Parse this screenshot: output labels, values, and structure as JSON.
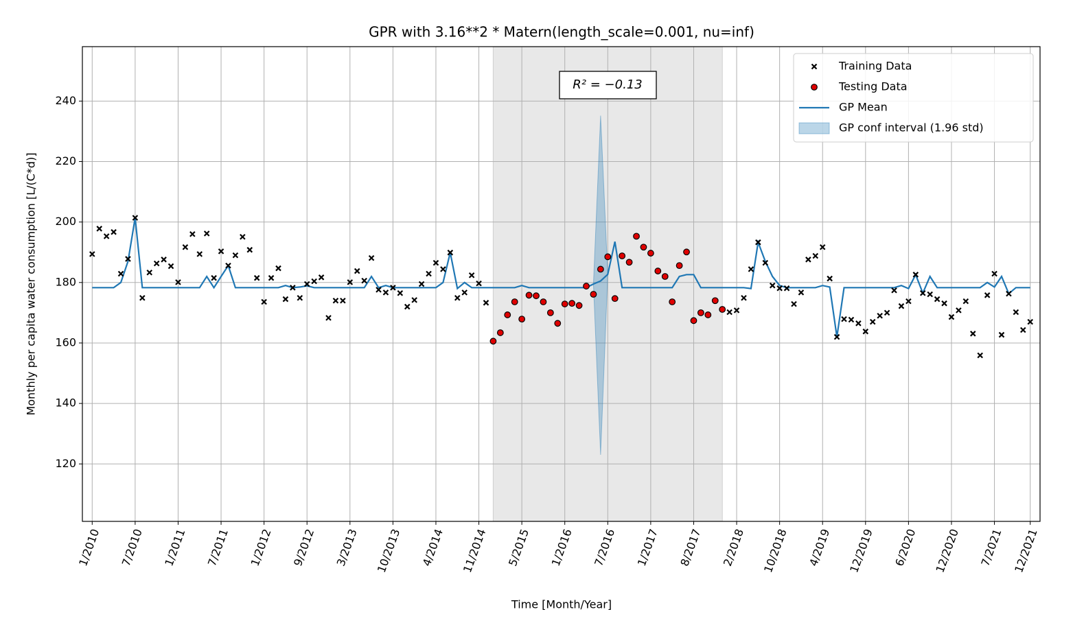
{
  "chart_data": {
    "type": "line",
    "title": "GPR with 3.16**2 * Matern(length_scale=0.001, nu=inf)",
    "xlabel": "Time [Month/Year]",
    "ylabel": "Monthly per capita water consumption [L/(C*d)]",
    "annotation": "R² = −0.13",
    "grid": true,
    "legend": "upper right",
    "ylim": [
      101,
      258
    ],
    "yticks": [
      120,
      140,
      160,
      180,
      200,
      220,
      240
    ],
    "categories": [
      "1/2010",
      null,
      null,
      null,
      null,
      null,
      "7/2010",
      null,
      null,
      null,
      null,
      null,
      "1/2011",
      null,
      null,
      null,
      null,
      null,
      "7/2011",
      null,
      null,
      null,
      null,
      null,
      "1/2012",
      null,
      null,
      null,
      null,
      null,
      "9/2012",
      null,
      null,
      null,
      null,
      null,
      "3/2013",
      null,
      null,
      null,
      null,
      null,
      "10/2013",
      null,
      null,
      null,
      null,
      null,
      "4/2014",
      null,
      null,
      null,
      null,
      null,
      "11/2014",
      null,
      null,
      null,
      null,
      null,
      "5/2015",
      null,
      null,
      null,
      null,
      null,
      "1/2016",
      null,
      null,
      null,
      null,
      null,
      "7/2016",
      null,
      null,
      null,
      null,
      null,
      "1/2017",
      null,
      null,
      null,
      null,
      null,
      "8/2017",
      null,
      null,
      null,
      null,
      null,
      "2/2018",
      null,
      null,
      null,
      null,
      null,
      "10/2018",
      null,
      null,
      null,
      null,
      null,
      "4/2019",
      null,
      null,
      null,
      null,
      null,
      "12/2019",
      null,
      null,
      null,
      null,
      null,
      "6/2020",
      null,
      null,
      null,
      null,
      null,
      "12/2020",
      null,
      null,
      null,
      null,
      null,
      "7/2021",
      null,
      null,
      null,
      null,
      "12/2021"
    ],
    "series": [
      {
        "name": "Training Data",
        "type": "scatter",
        "marker": "x",
        "color": "#000000",
        "values": [
          189.4,
          197.8,
          195.3,
          196.7,
          182.9,
          187.8,
          201.4,
          174.9,
          183.3,
          186.3,
          187.6,
          185.4,
          180.1,
          191.7,
          196.0,
          189.4,
          196.2,
          181.5,
          190.3,
          185.6,
          189.0,
          195.1,
          190.8,
          181.5,
          173.6,
          181.5,
          184.7,
          174.5,
          178.3,
          174.9,
          179.5,
          180.4,
          181.7,
          168.3,
          174.0,
          174.0,
          180.1,
          183.8,
          180.6,
          188.1,
          177.6,
          176.7,
          178.3,
          176.5,
          172.0,
          174.2,
          179.5,
          182.9,
          186.5,
          184.4,
          189.9,
          174.9,
          176.7,
          182.4,
          179.7,
          173.3,
          null,
          null,
          null,
          null,
          null,
          null,
          null,
          null,
          null,
          null,
          null,
          null,
          null,
          null,
          null,
          null,
          null,
          null,
          null,
          null,
          null,
          null,
          null,
          null,
          null,
          null,
          null,
          null,
          null,
          null,
          null,
          null,
          null,
          170.2,
          170.8,
          174.9,
          184.4,
          193.3,
          186.5,
          179.0,
          178.1,
          178.1,
          172.9,
          176.7,
          187.6,
          188.8,
          191.7,
          181.3,
          162.0,
          167.9,
          167.7,
          166.5,
          163.8,
          167.0,
          169.0,
          170.0,
          177.4,
          172.2,
          173.8,
          182.6,
          176.5,
          176.1,
          174.5,
          173.1,
          168.6,
          170.8,
          173.8,
          163.1,
          155.9,
          175.8,
          182.9,
          162.7,
          176.3,
          170.2,
          164.3,
          167.0
        ]
      },
      {
        "name": "Testing Data",
        "type": "scatter",
        "marker": "o",
        "color": "#e00000",
        "span": true,
        "values": [
          null,
          null,
          null,
          null,
          null,
          null,
          null,
          null,
          null,
          null,
          null,
          null,
          null,
          null,
          null,
          null,
          null,
          null,
          null,
          null,
          null,
          null,
          null,
          null,
          null,
          null,
          null,
          null,
          null,
          null,
          null,
          null,
          null,
          null,
          null,
          null,
          null,
          null,
          null,
          null,
          null,
          null,
          null,
          null,
          null,
          null,
          null,
          null,
          null,
          null,
          null,
          null,
          null,
          null,
          null,
          null,
          160.6,
          163.4,
          169.3,
          173.6,
          167.9,
          175.8,
          175.6,
          173.6,
          170.0,
          166.5,
          172.9,
          173.1,
          172.4,
          178.8,
          176.1,
          184.4,
          188.5,
          174.7,
          188.8,
          186.7,
          195.3,
          191.7,
          189.7,
          183.8,
          182.0,
          173.6,
          185.6,
          190.1,
          167.4,
          170.0,
          169.3,
          174.0,
          171.1,
          null,
          null,
          null,
          null,
          null,
          null,
          null,
          null,
          null,
          null,
          null,
          null,
          null,
          null,
          null,
          null,
          null,
          null,
          null,
          null,
          null,
          null,
          null,
          null,
          null,
          null,
          null,
          null,
          null,
          null,
          null,
          null,
          null,
          null,
          null,
          null,
          null,
          null,
          null,
          null,
          null,
          null,
          null
        ]
      },
      {
        "name": "GP Mean",
        "type": "line",
        "color": "#1f77b4",
        "values": [
          178.3,
          178.3,
          178.3,
          178.3,
          180,
          187,
          201.4,
          178.3,
          178.3,
          178.3,
          178.3,
          178.3,
          178.3,
          178.3,
          178.3,
          178.3,
          182,
          178.3,
          182,
          185.6,
          178.3,
          178.3,
          178.3,
          178.3,
          178.3,
          178.3,
          178.3,
          179,
          178.3,
          178.5,
          178.9,
          178.3,
          178.3,
          178.3,
          178.3,
          178.3,
          178.3,
          178.3,
          178.3,
          182,
          178.3,
          179,
          178.3,
          178.3,
          178.3,
          178.3,
          178.3,
          178.3,
          178.3,
          180,
          189.9,
          178,
          180,
          178.3,
          178.3,
          178.3,
          178.3,
          178.3,
          178.3,
          178.3,
          179,
          178.3,
          178.3,
          178.3,
          178.3,
          178.3,
          178.3,
          178.3,
          178.3,
          178.3,
          179.5,
          180.5,
          182.7,
          193.5,
          178.3,
          178.3,
          178.3,
          178.3,
          178.3,
          178.3,
          178.3,
          178.3,
          182,
          182.6,
          182.6,
          178.3,
          178.3,
          178.3,
          178.3,
          178.3,
          178.3,
          178.3,
          178,
          193.3,
          187,
          182,
          179,
          178.3,
          178.3,
          178.3,
          178.3,
          178.3,
          179,
          178.5,
          162,
          178.3,
          178.3,
          178.3,
          178.3,
          178.3,
          178.3,
          178.3,
          178.3,
          179,
          178,
          182.6,
          176.5,
          182,
          178.3,
          178.3,
          178.3,
          178.3,
          178.3,
          178.3,
          178.3,
          180,
          178.5,
          182,
          176.3,
          178.3,
          178.3,
          178.3
        ]
      },
      {
        "name": "GP conf interval (1.96 std)",
        "type": "band",
        "color": "#1f77b4",
        "lower": [
          null,
          null,
          null,
          null,
          null,
          null,
          null,
          null,
          null,
          null,
          null,
          null,
          null,
          null,
          null,
          null,
          null,
          null,
          null,
          null,
          null,
          null,
          null,
          null,
          null,
          null,
          null,
          null,
          null,
          null,
          null,
          null,
          null,
          null,
          null,
          null,
          null,
          null,
          null,
          null,
          null,
          null,
          null,
          null,
          null,
          null,
          null,
          null,
          null,
          null,
          null,
          null,
          null,
          null,
          null,
          null,
          null,
          null,
          null,
          null,
          null,
          null,
          null,
          null,
          null,
          null,
          null,
          null,
          null,
          null,
          179.5,
          123,
          182.7,
          null,
          null,
          null,
          null,
          null,
          null,
          null,
          null,
          null,
          null,
          null,
          null,
          null,
          null,
          null,
          null,
          null,
          null,
          null,
          null,
          null,
          null,
          null,
          null,
          null,
          null,
          null,
          null,
          null,
          null,
          null,
          null,
          null,
          null,
          null,
          null,
          null,
          null,
          null,
          null,
          null,
          null,
          null,
          null,
          null,
          null,
          null,
          null,
          null,
          null,
          null,
          null,
          null,
          null,
          null,
          null,
          null,
          null,
          null
        ],
        "upper": [
          null,
          null,
          null,
          null,
          null,
          null,
          null,
          null,
          null,
          null,
          null,
          null,
          null,
          null,
          null,
          null,
          null,
          null,
          null,
          null,
          null,
          null,
          null,
          null,
          null,
          null,
          null,
          null,
          null,
          null,
          null,
          null,
          null,
          null,
          null,
          null,
          null,
          null,
          null,
          null,
          null,
          null,
          null,
          null,
          null,
          null,
          null,
          null,
          null,
          null,
          null,
          null,
          null,
          null,
          null,
          null,
          null,
          null,
          null,
          null,
          null,
          null,
          null,
          null,
          null,
          null,
          null,
          null,
          null,
          null,
          179.5,
          235.2,
          182.7,
          null,
          null,
          null,
          null,
          null,
          null,
          null,
          null,
          null,
          null,
          null,
          null,
          null,
          null,
          null,
          null,
          null,
          null,
          null,
          null,
          null,
          null,
          null,
          null,
          null,
          null,
          null,
          null,
          null,
          null,
          null,
          null,
          null,
          null,
          null,
          null,
          null,
          null,
          null,
          null,
          null,
          null,
          null,
          null,
          null,
          null,
          null,
          null,
          null,
          null,
          null,
          null,
          null,
          null,
          null,
          null,
          null,
          null,
          null
        ]
      }
    ]
  }
}
